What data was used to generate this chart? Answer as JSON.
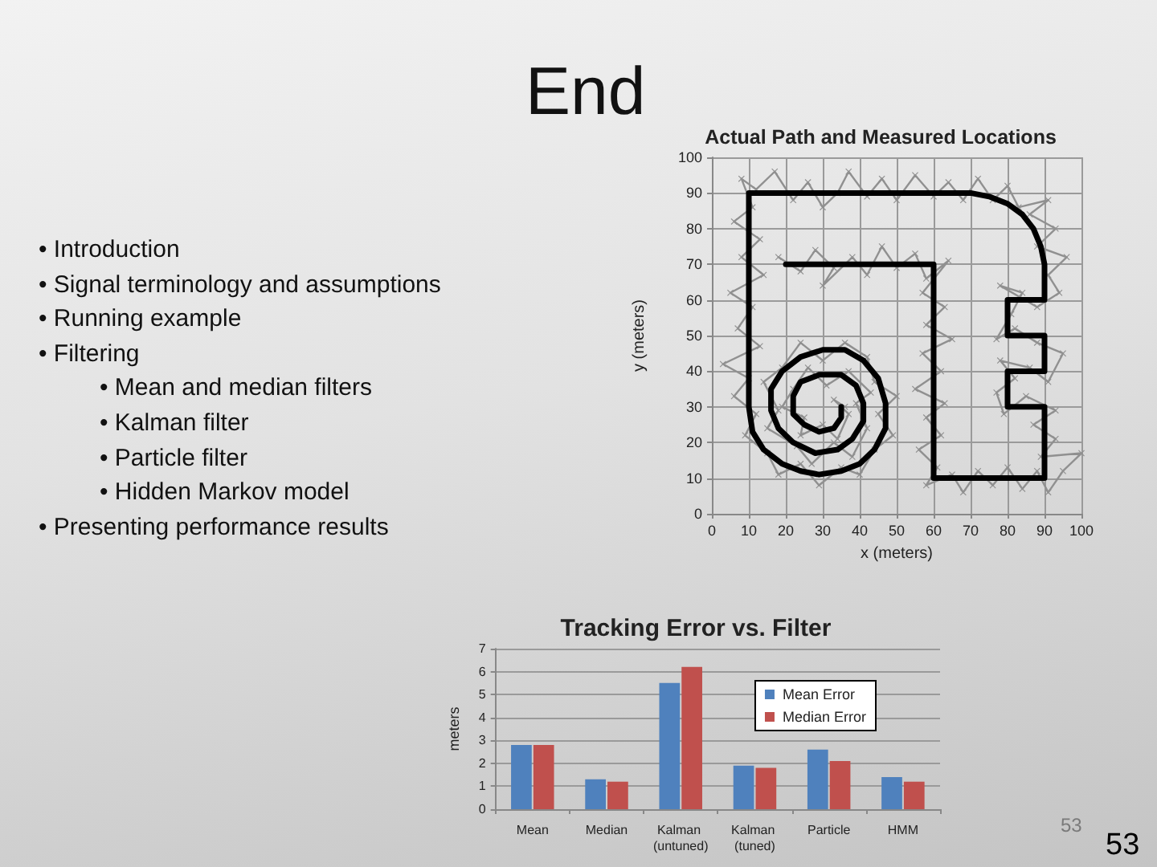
{
  "chart_data": [
    {
      "type": "other",
      "title": "End",
      "annotations": [
        "• Introduction",
        "• Signal terminology and assumptions",
        "• Running example",
        "• Filtering",
        "\t• Mean and median filters",
        "\t• Kalman filter",
        "\t• Particle filter",
        "\t• Hidden Markov model",
        "• Presenting performance results"
      ]
    },
    {
      "type": "line",
      "title": "Actual Path and Measured Locations",
      "xlabel": "x (meters)",
      "ylabel": "y (meters)",
      "xlim": [
        0,
        100
      ],
      "ylim": [
        0,
        100
      ],
      "xticks": [
        0,
        10,
        20,
        30,
        40,
        50,
        60,
        70,
        80,
        90,
        100
      ],
      "yticks": [
        0,
        10,
        20,
        30,
        40,
        50,
        60,
        70,
        80,
        90,
        100
      ],
      "grid": true,
      "series": [
        {
          "color": "#909090",
          "marker": "cross",
          "x": [
            18,
            24,
            28,
            33,
            30,
            38,
            42,
            46,
            50,
            55,
            58,
            64,
            57,
            63,
            58,
            65,
            57,
            62,
            55,
            63,
            58,
            62,
            56,
            61,
            58,
            65,
            68,
            72,
            76,
            80,
            84,
            88,
            91,
            95,
            100,
            89,
            93,
            87,
            93,
            85,
            79,
            77,
            82,
            78,
            86,
            91,
            95,
            88,
            82,
            77,
            81,
            84,
            78,
            88,
            94,
            91,
            96,
            88,
            93,
            86,
            91,
            83,
            80,
            76,
            72,
            68,
            64,
            60,
            55,
            50,
            46,
            42,
            37,
            34,
            30,
            26,
            22,
            17,
            12,
            8,
            11,
            6,
            13,
            8,
            14,
            5,
            11,
            7,
            13,
            3,
            10,
            6,
            12,
            9,
            15,
            18,
            24,
            29,
            35,
            40,
            44,
            49,
            45,
            50,
            44,
            42,
            36,
            30,
            24,
            19,
            14,
            18,
            15,
            23,
            27,
            33,
            38,
            42,
            39,
            43,
            37,
            31,
            26,
            22,
            19,
            25,
            24,
            30,
            34,
            37,
            33,
            36
          ],
          "values": [
            72,
            68,
            74,
            69,
            64,
            72,
            67,
            75,
            69,
            73,
            66,
            71,
            62,
            58,
            53,
            49,
            45,
            40,
            35,
            31,
            27,
            22,
            18,
            13,
            8,
            11,
            6,
            12,
            8,
            13,
            7,
            12,
            6,
            12,
            17,
            16,
            21,
            25,
            29,
            33,
            28,
            34,
            38,
            43,
            41,
            37,
            45,
            48,
            52,
            49,
            56,
            62,
            64,
            58,
            62,
            67,
            72,
            75,
            80,
            84,
            88,
            86,
            92,
            88,
            94,
            88,
            93,
            89,
            95,
            88,
            94,
            89,
            96,
            90,
            86,
            93,
            88,
            96,
            91,
            94,
            86,
            82,
            77,
            72,
            67,
            62,
            58,
            52,
            47,
            42,
            38,
            33,
            28,
            22,
            17,
            11,
            14,
            8,
            13,
            11,
            18,
            22,
            28,
            33,
            37,
            44,
            48,
            43,
            48,
            41,
            37,
            29,
            24,
            19,
            14,
            20,
            16,
            24,
            31,
            34,
            40,
            36,
            41,
            35,
            30,
            27,
            22,
            25,
            21,
            28,
            32,
            30
          ]
        },
        {
          "color": "#000000",
          "x": [
            20,
            60,
            60,
            90,
            90,
            80,
            80,
            90,
            90,
            80,
            80,
            90,
            90,
            89,
            87,
            84,
            80,
            75,
            70,
            10,
            10,
            11,
            14,
            19,
            24,
            29,
            35,
            40,
            44,
            47,
            47,
            45,
            41,
            36,
            30,
            24,
            19,
            16,
            16,
            18,
            22,
            28,
            34,
            38,
            41,
            41,
            39,
            35,
            29,
            24,
            22,
            22,
            25,
            29,
            33,
            35,
            35
          ],
          "values": [
            70,
            70,
            10,
            10,
            30,
            30,
            40,
            40,
            50,
            50,
            60,
            60,
            70,
            75,
            80,
            84,
            87,
            89,
            90,
            90,
            30,
            23,
            18,
            14,
            12,
            11,
            12,
            14,
            18,
            24,
            31,
            38,
            43,
            46,
            46,
            44,
            40,
            35,
            29,
            24,
            20,
            17,
            18,
            21,
            26,
            31,
            36,
            39,
            39,
            37,
            33,
            28,
            25,
            23,
            24,
            27,
            30
          ]
        }
      ]
    },
    {
      "type": "bar",
      "title": "Tracking Error vs. Filter",
      "ylabel": "meters",
      "categories": [
        "Mean",
        "Median",
        "Kalman (untuned)",
        "Kalman (tuned)",
        "Particle",
        "HMM"
      ],
      "series": [
        {
          "name": "Mean Error",
          "color": "#4f81bd",
          "values": [
            2.8,
            1.3,
            5.5,
            1.9,
            2.6,
            1.4
          ]
        },
        {
          "name": "Median Error",
          "color": "#c0504d",
          "values": [
            2.8,
            1.2,
            6.2,
            1.8,
            2.1,
            1.2
          ]
        }
      ],
      "ylim": [
        0,
        7
      ],
      "yticks": [
        0,
        1,
        2,
        3,
        4,
        5,
        6,
        7
      ],
      "grid": "y",
      "legend": "top right"
    },
    {
      "type": "other",
      "annotations": [
        "53",
        "53"
      ]
    }
  ]
}
